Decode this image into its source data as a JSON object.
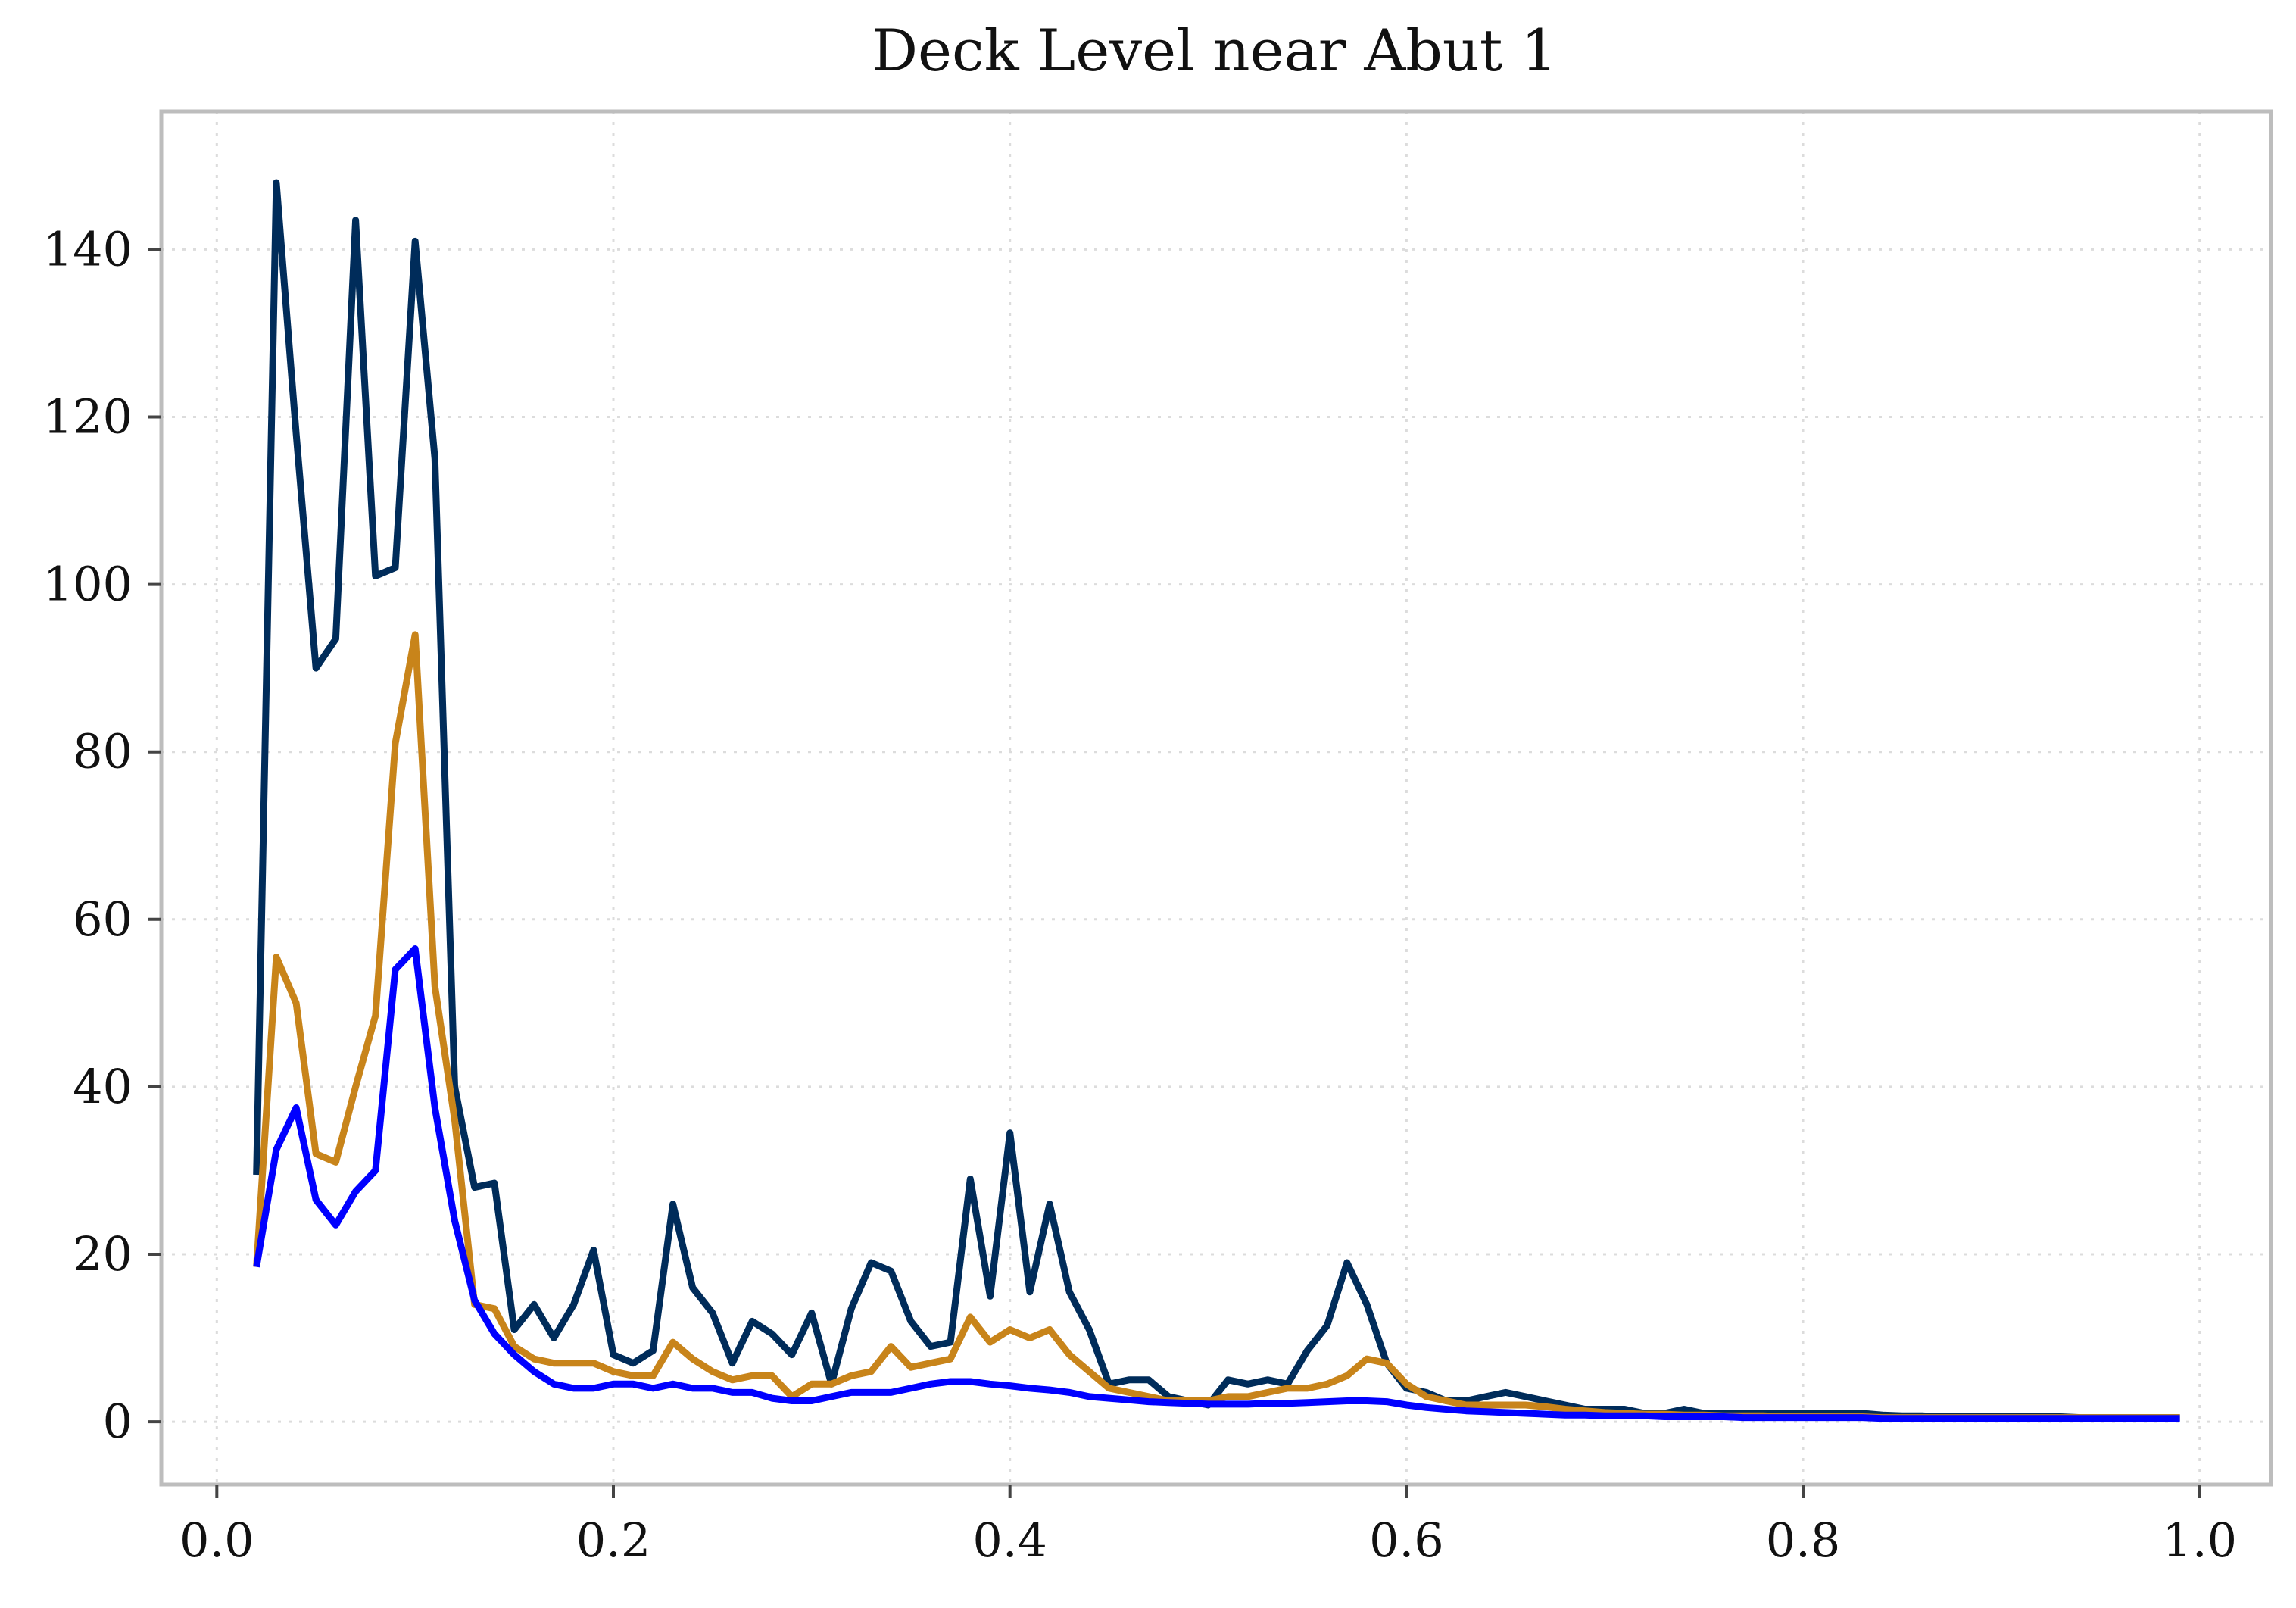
{
  "chart_data": {
    "type": "line",
    "title": "Deck Level near Abut 1",
    "xlabel": "",
    "ylabel": "",
    "xlim": [
      -0.028,
      1.036
    ],
    "ylim": [
      -7.5,
      156.5
    ],
    "grid": true,
    "legend": "none",
    "x_ticks": [
      {
        "value": 0.0,
        "label": "0.0"
      },
      {
        "value": 0.2,
        "label": "0.2"
      },
      {
        "value": 0.4,
        "label": "0.4"
      },
      {
        "value": 0.6,
        "label": "0.6"
      },
      {
        "value": 0.8,
        "label": "0.8"
      },
      {
        "value": 1.0,
        "label": "1.0"
      }
    ],
    "y_ticks": [
      {
        "value": 0,
        "label": "0"
      },
      {
        "value": 20,
        "label": "20"
      },
      {
        "value": 40,
        "label": "40"
      },
      {
        "value": 60,
        "label": "60"
      },
      {
        "value": 80,
        "label": "80"
      },
      {
        "value": 100,
        "label": "100"
      },
      {
        "value": 120,
        "label": "120"
      },
      {
        "value": 140,
        "label": "140"
      }
    ],
    "x": [
      0.02,
      0.03,
      0.04,
      0.05,
      0.06,
      0.07,
      0.08,
      0.09,
      0.1,
      0.11,
      0.12,
      0.13,
      0.14,
      0.15,
      0.16,
      0.17,
      0.18,
      0.19,
      0.2,
      0.21,
      0.22,
      0.23,
      0.24,
      0.25,
      0.26,
      0.27,
      0.28,
      0.29,
      0.3,
      0.31,
      0.32,
      0.33,
      0.34,
      0.35,
      0.36,
      0.37,
      0.38,
      0.39,
      0.4,
      0.41,
      0.42,
      0.43,
      0.44,
      0.45,
      0.46,
      0.47,
      0.48,
      0.49,
      0.5,
      0.51,
      0.52,
      0.53,
      0.54,
      0.55,
      0.56,
      0.57,
      0.58,
      0.59,
      0.6,
      0.61,
      0.62,
      0.63,
      0.64,
      0.65,
      0.66,
      0.67,
      0.68,
      0.69,
      0.7,
      0.71,
      0.72,
      0.73,
      0.74,
      0.75,
      0.76,
      0.77,
      0.78,
      0.79,
      0.8,
      0.81,
      0.82,
      0.83,
      0.84,
      0.85,
      0.86,
      0.87,
      0.88,
      0.89,
      0.9,
      0.91,
      0.92,
      0.93,
      0.94,
      0.95,
      0.96,
      0.97,
      0.98,
      0.99
    ],
    "series": [
      {
        "color": "#002c5a",
        "values": [
          29.5,
          148,
          118,
          90,
          93.5,
          143.5,
          101,
          102,
          141,
          115,
          40,
          28,
          28.5,
          11,
          14,
          10,
          14,
          20.5,
          8,
          7,
          8.5,
          26,
          16,
          13,
          7,
          12,
          10.5,
          8,
          13,
          4.5,
          13.5,
          19,
          18,
          12,
          9,
          9.5,
          29,
          15,
          34.5,
          15.5,
          26,
          15.5,
          11,
          4.5,
          5,
          5,
          3,
          2.5,
          2,
          5,
          4.5,
          5,
          4.5,
          8.5,
          11.5,
          19,
          14,
          7,
          4,
          3.5,
          2.5,
          2.5,
          3,
          3.5,
          3,
          2.5,
          2,
          1.5,
          1.5,
          1.5,
          1,
          1,
          1.5,
          1,
          1,
          1,
          1,
          1,
          1,
          1,
          1,
          1,
          0.8,
          0.7,
          0.7,
          0.6,
          0.6,
          0.6,
          0.6,
          0.6,
          0.6,
          0.6,
          0.5,
          0.5,
          0.5,
          0.5,
          0.5,
          0.5
        ]
      },
      {
        "color": "#c8841a",
        "values": [
          18.5,
          55.5,
          50,
          32,
          31,
          40,
          48.5,
          81,
          94,
          52,
          36,
          14,
          13.5,
          9,
          7.5,
          7,
          7,
          7,
          6,
          5.5,
          5.5,
          9.5,
          7.5,
          6,
          5,
          5.5,
          5.5,
          3,
          4.5,
          4.5,
          5.5,
          6,
          9,
          6.5,
          7,
          7.5,
          12.5,
          9.5,
          11,
          10,
          11,
          8,
          6,
          4,
          3.5,
          3,
          2.5,
          2.5,
          2.5,
          3,
          3,
          3.5,
          4,
          4,
          4.5,
          5.5,
          7.5,
          7,
          4.5,
          3,
          2.5,
          2,
          2,
          2,
          2,
          1.8,
          1.5,
          1.3,
          1.1,
          1,
          0.9,
          0.9,
          0.8,
          0.8,
          0.7,
          0.7,
          0.7,
          0.6,
          0.6,
          0.6,
          0.6,
          0.6,
          0.5,
          0.5,
          0.5,
          0.5,
          0.5,
          0.5,
          0.5,
          0.5,
          0.5,
          0.5,
          0.5,
          0.5,
          0.5,
          0.5,
          0.5,
          0.5
        ]
      },
      {
        "color": "#0000ff",
        "values": [
          18.5,
          32.5,
          37.5,
          26.5,
          23.5,
          27.5,
          30,
          54,
          56.5,
          37.5,
          24,
          14.5,
          10.5,
          8,
          6,
          4.5,
          4,
          4,
          4.5,
          4.5,
          4,
          4.5,
          4,
          4,
          3.5,
          3.5,
          2.8,
          2.5,
          2.5,
          3,
          3.5,
          3.5,
          3.5,
          4,
          4.5,
          4.8,
          4.8,
          4.5,
          4.3,
          4,
          3.8,
          3.5,
          3,
          2.8,
          2.6,
          2.4,
          2.3,
          2.2,
          2.1,
          2.1,
          2.1,
          2.2,
          2.2,
          2.3,
          2.4,
          2.5,
          2.5,
          2.4,
          2,
          1.7,
          1.5,
          1.3,
          1.2,
          1.1,
          1,
          0.9,
          0.8,
          0.8,
          0.7,
          0.7,
          0.7,
          0.6,
          0.6,
          0.6,
          0.6,
          0.5,
          0.5,
          0.5,
          0.5,
          0.5,
          0.5,
          0.5,
          0.4,
          0.4,
          0.4,
          0.4,
          0.4,
          0.4,
          0.4,
          0.4,
          0.4,
          0.4,
          0.4,
          0.4,
          0.4,
          0.4,
          0.4,
          0.4
        ]
      }
    ]
  }
}
